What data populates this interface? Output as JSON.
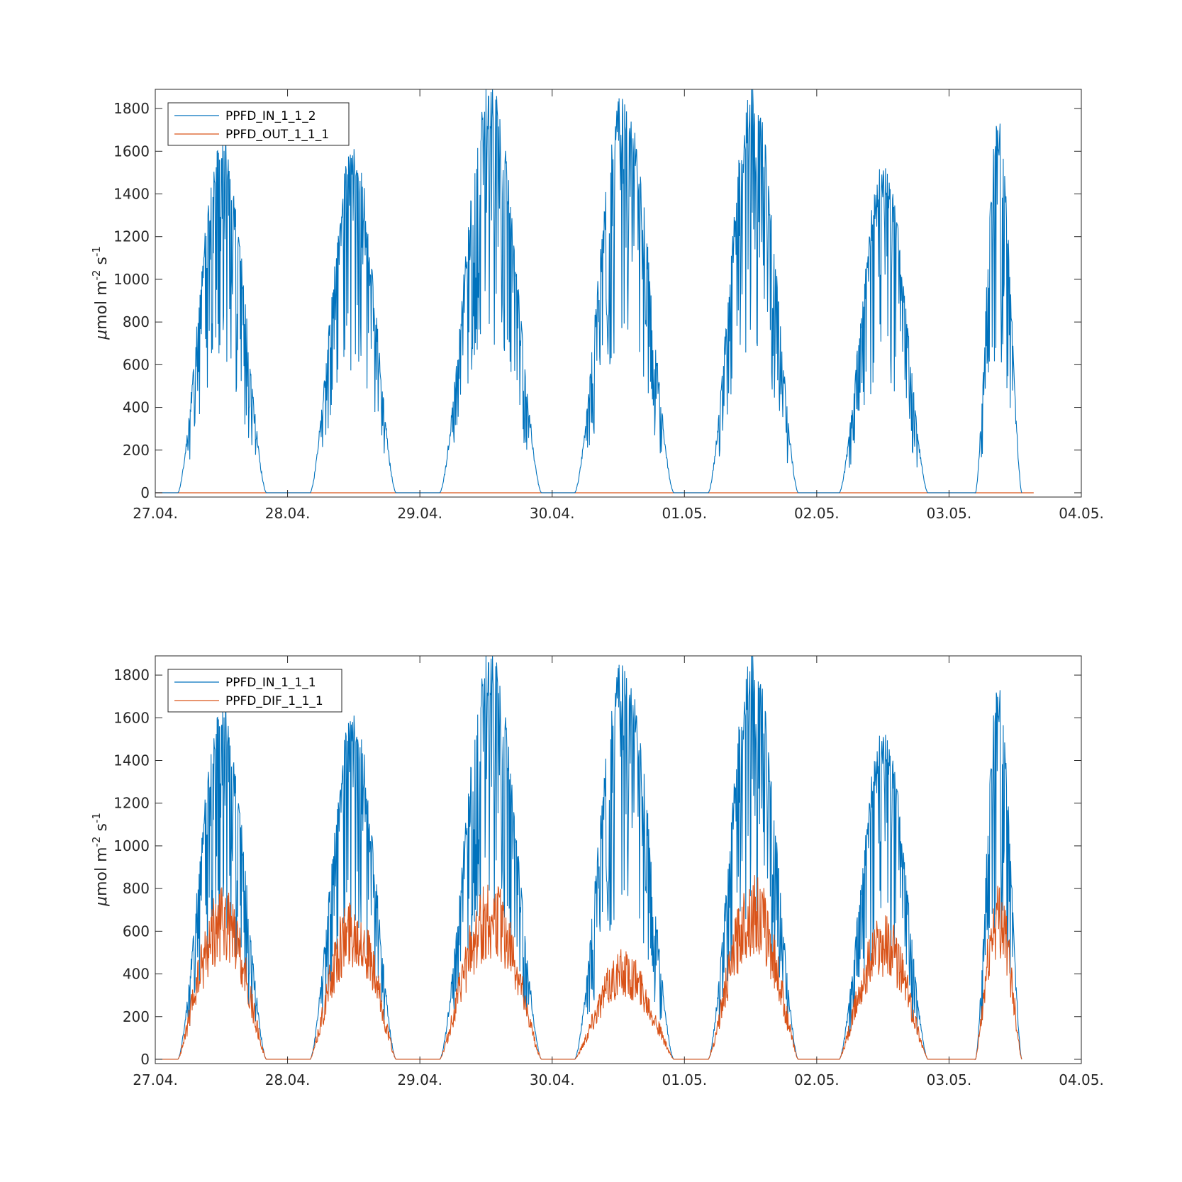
{
  "colors": {
    "series1": "#0072BD",
    "series2": "#D95319",
    "axis": "#262626"
  },
  "chart_data": [
    {
      "type": "line",
      "title": "",
      "xlabel": "",
      "ylabel": "μmol m-2 s-1",
      "ylabel_parts": {
        "mu": "μ",
        "body": "mol m",
        "exp1": "-2",
        "mid": " s",
        "exp2": "-1"
      },
      "x_ticks": [
        "27.04.",
        "28.04.",
        "29.04.",
        "30.04.",
        "01.05.",
        "02.05.",
        "03.05.",
        "04.05."
      ],
      "y_ticks": [
        "0",
        "200",
        "400",
        "600",
        "800",
        "1000",
        "1200",
        "1400",
        "1600",
        "1800"
      ],
      "xlim_days": [
        0,
        7
      ],
      "ylim": [
        -20,
        1890
      ],
      "grid": false,
      "legend_position": "top-left",
      "series": [
        {
          "name": "PPFD_IN_1_1_2",
          "color": "#0072BD",
          "days": [
            {
              "rise": 0.17,
              "set": 0.84,
              "base": 630,
              "amp": 720,
              "peak": 1640,
              "noise": 0.55,
              "seed": 11
            },
            {
              "rise": 1.17,
              "set": 1.82,
              "base": 700,
              "amp": 780,
              "peak": 1610,
              "noise": 0.45,
              "seed": 12
            },
            {
              "rise": 2.15,
              "set": 2.92,
              "base": 780,
              "amp": 900,
              "peak": 1890,
              "noise": 0.6,
              "seed": 13
            },
            {
              "rise": 2.17,
              "set": 3.92,
              "base": 0,
              "amp": 0,
              "peak": 0,
              "noise": 0,
              "seed": 0,
              "skip": true
            },
            {
              "rise": 3.17,
              "set": 3.92,
              "base": 760,
              "amp": 900,
              "peak": 1860,
              "noise": 0.55,
              "seed": 14
            },
            {
              "rise": 4.18,
              "set": 4.86,
              "base": 760,
              "amp": 940,
              "peak": 1890,
              "noise": 0.6,
              "seed": 15
            },
            {
              "rise": 5.17,
              "set": 5.84,
              "base": 720,
              "amp": 700,
              "peak": 1520,
              "noise": 0.45,
              "seed": 16
            },
            {
              "rise": 6.2,
              "set": 6.55,
              "base": 850,
              "amp": 850,
              "peak": 1750,
              "noise": 0.5,
              "seed": 17,
              "cut": 6.55
            }
          ]
        },
        {
          "name": "PPFD_OUT_1_1_1",
          "color": "#D95319",
          "constant": 0,
          "x_range_days": [
            0,
            6.64
          ]
        }
      ]
    },
    {
      "type": "line",
      "title": "",
      "xlabel": "",
      "ylabel": "μmol m-2 s-1",
      "ylabel_parts": {
        "mu": "μ",
        "body": "mol m",
        "exp1": "-2",
        "mid": " s",
        "exp2": "-1"
      },
      "x_ticks": [
        "27.04.",
        "28.04.",
        "29.04.",
        "30.04.",
        "01.05.",
        "02.05.",
        "03.05.",
        "04.05."
      ],
      "y_ticks": [
        "0",
        "200",
        "400",
        "600",
        "800",
        "1000",
        "1200",
        "1400",
        "1600",
        "1800"
      ],
      "xlim_days": [
        0,
        7
      ],
      "ylim": [
        -20,
        1890
      ],
      "grid": false,
      "legend_position": "top-left",
      "series": [
        {
          "name": "PPFD_IN_1_1_1",
          "color": "#0072BD"
        },
        {
          "name": "PPFD_DIF_1_1_1",
          "color": "#D95319",
          "diffuse_levels": [
            820,
            780,
            850,
            520,
            880,
            700,
            860
          ]
        }
      ]
    }
  ]
}
